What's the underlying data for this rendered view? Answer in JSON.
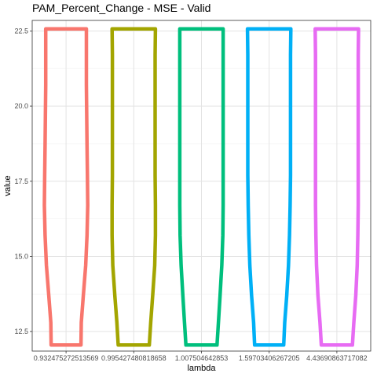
{
  "chart_data": {
    "type": "violin",
    "title": "PAM_Percent_Change - MSE - Valid",
    "xlabel": "lambda",
    "ylabel": "value",
    "ylim": [
      11.85,
      22.85
    ],
    "yticks": [
      12.5,
      15.0,
      17.5,
      20.0,
      22.5
    ],
    "ytick_labels": [
      "12.5",
      "15.0",
      "17.5",
      "20.0",
      "22.5"
    ],
    "grid": true,
    "legend": "none",
    "categories": [
      "0.932475272513569",
      "0.995427480818658",
      "1.007504642853",
      "1.59703406267205",
      "4.43690863717082"
    ],
    "series": [
      {
        "color": "#F8766D",
        "ymin": 12.05,
        "ymax": 22.57,
        "profile": [
          [
            12.05,
            0.44
          ],
          [
            12.8,
            0.45
          ],
          [
            13.7,
            0.51
          ],
          [
            14.7,
            0.58
          ],
          [
            15.7,
            0.62
          ],
          [
            16.7,
            0.64
          ],
          [
            17.7,
            0.63
          ],
          [
            18.7,
            0.62
          ],
          [
            19.7,
            0.61
          ],
          [
            20.7,
            0.6
          ],
          [
            21.7,
            0.6
          ],
          [
            22.57,
            0.6
          ]
        ]
      },
      {
        "color": "#A3A500",
        "ymin": 12.05,
        "ymax": 22.57,
        "profile": [
          [
            12.05,
            0.46
          ],
          [
            12.8,
            0.5
          ],
          [
            13.7,
            0.56
          ],
          [
            14.7,
            0.62
          ],
          [
            15.7,
            0.64
          ],
          [
            16.7,
            0.64
          ],
          [
            17.7,
            0.63
          ],
          [
            18.7,
            0.63
          ],
          [
            19.7,
            0.63
          ],
          [
            20.7,
            0.63
          ],
          [
            21.7,
            0.63
          ],
          [
            22.57,
            0.64
          ]
        ]
      },
      {
        "color": "#00BF7D",
        "ymin": 12.05,
        "ymax": 22.57,
        "profile": [
          [
            12.05,
            0.46
          ],
          [
            12.8,
            0.5
          ],
          [
            13.7,
            0.55
          ],
          [
            14.7,
            0.6
          ],
          [
            15.7,
            0.63
          ],
          [
            16.7,
            0.64
          ],
          [
            17.7,
            0.64
          ],
          [
            18.7,
            0.64
          ],
          [
            19.7,
            0.64
          ],
          [
            20.7,
            0.64
          ],
          [
            21.7,
            0.64
          ],
          [
            22.57,
            0.64
          ]
        ]
      },
      {
        "color": "#00B0F6",
        "ymin": 12.05,
        "ymax": 22.57,
        "profile": [
          [
            12.05,
            0.43
          ],
          [
            12.8,
            0.46
          ],
          [
            13.7,
            0.52
          ],
          [
            14.7,
            0.57
          ],
          [
            15.7,
            0.6
          ],
          [
            16.7,
            0.62
          ],
          [
            17.7,
            0.63
          ],
          [
            18.7,
            0.63
          ],
          [
            19.7,
            0.63
          ],
          [
            20.7,
            0.63
          ],
          [
            21.7,
            0.63
          ],
          [
            22.57,
            0.64
          ]
        ]
      },
      {
        "color": "#E76BF3",
        "ymin": 12.05,
        "ymax": 22.57,
        "profile": [
          [
            12.05,
            0.46
          ],
          [
            12.8,
            0.5
          ],
          [
            13.7,
            0.56
          ],
          [
            14.7,
            0.6
          ],
          [
            15.7,
            0.62
          ],
          [
            16.7,
            0.63
          ],
          [
            17.7,
            0.63
          ],
          [
            18.7,
            0.63
          ],
          [
            19.7,
            0.63
          ],
          [
            20.7,
            0.63
          ],
          [
            21.7,
            0.63
          ],
          [
            22.57,
            0.64
          ]
        ]
      }
    ]
  }
}
